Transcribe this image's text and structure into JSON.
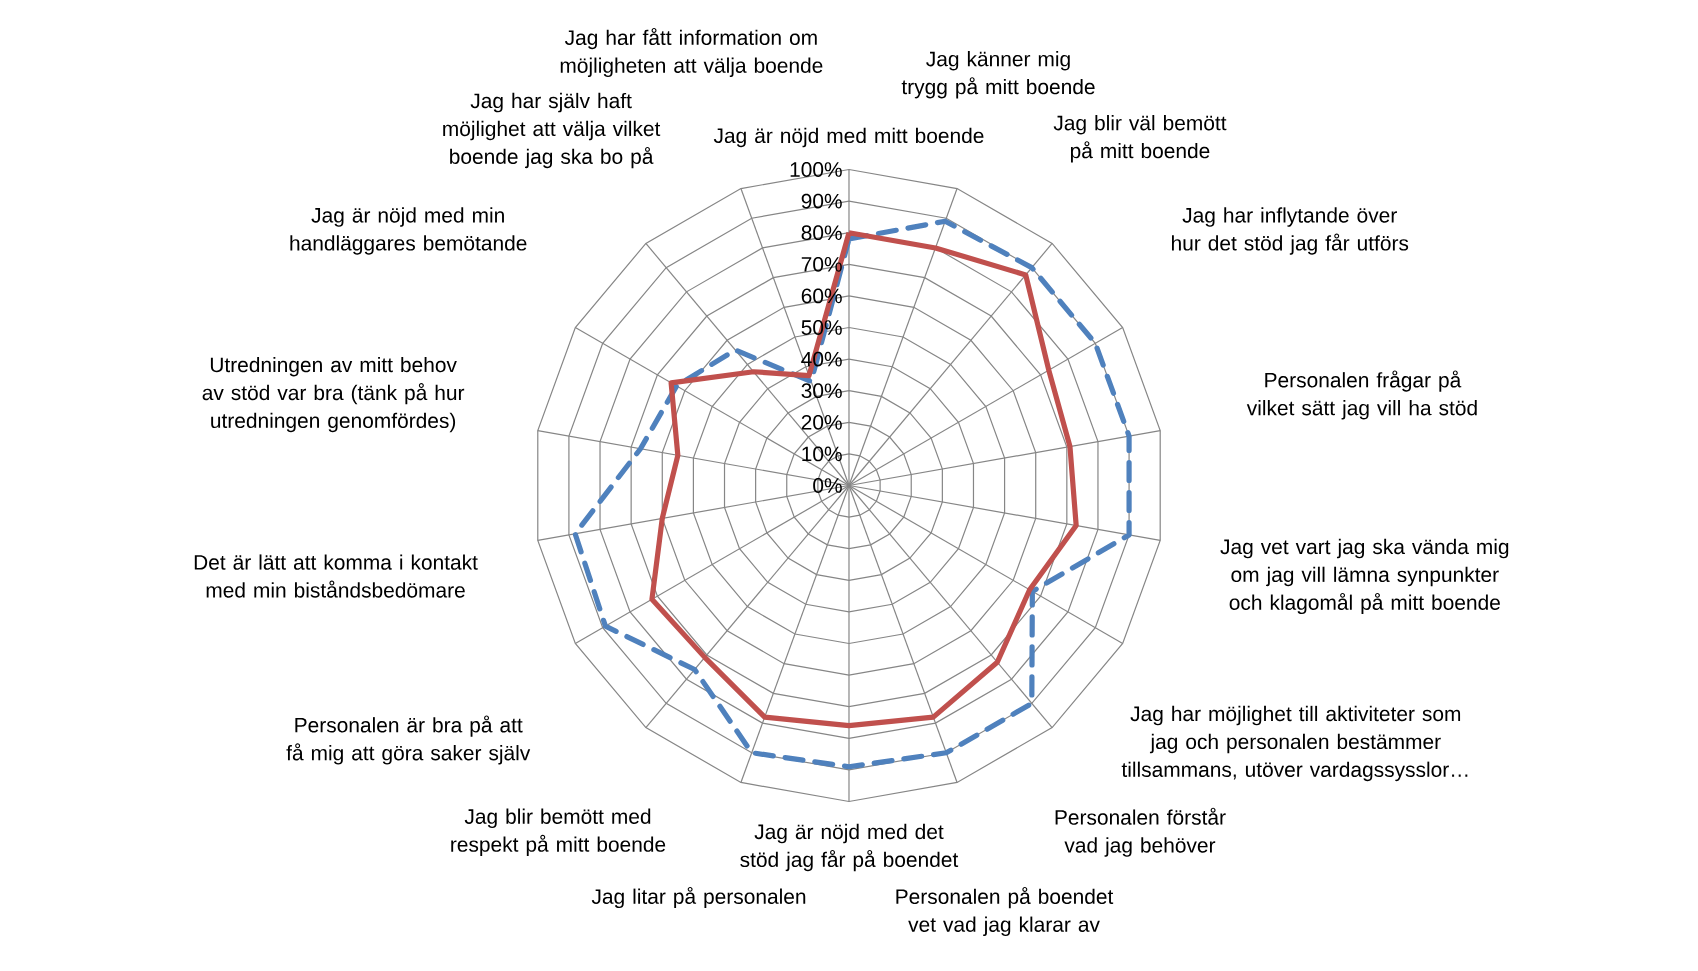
{
  "chart_data": {
    "type": "radar",
    "categories": [
      "Jag är nöjd med mitt boende",
      "Jag känner mig trygg på mitt boende",
      "Jag blir väl bemött på mitt boende",
      "Jag har inflytande över hur det stöd jag får utförs",
      "Personalen frågar på vilket sätt jag vill ha stöd",
      "Jag vet vart jag ska vända mig om jag vill lämna synpunkter och klagomål på mitt boende",
      "Jag har möjlighet till aktiviteter som jag och personalen bestämmer tillsammans, utöver vardagssysslor…",
      "Personalen förstår vad jag behöver",
      "Personalen på boendet vet vad jag klarar av",
      "Jag är nöjd med det stöd jag får på boendet",
      "Jag litar på personalen",
      "Jag blir bemött med respekt på mitt boende",
      "Personalen är bra på att få mig att göra saker själv",
      "Det är lätt att komma i kontakt med min biståndsbedömare",
      "Utredningen av mitt behov av stöd var bra (tänk på hur utredningen genomfördes)",
      "Jag är nöjd med min handläggares bemötande",
      "Jag har själv haft möjlighet att välja vilket boende jag ska bo på",
      "Jag har fått information om möjligheten att välja boende"
    ],
    "series": [
      {
        "color": "#4f81bd",
        "line_style": "dashed",
        "values": [
          78,
          89,
          90,
          90,
          90,
          90,
          67,
          90,
          90,
          89,
          90,
          76,
          89,
          88,
          67,
          63,
          56,
          35
        ]
      },
      {
        "color": "#c0504d",
        "line_style": "solid",
        "values": [
          80,
          80,
          87,
          73,
          71,
          73,
          66,
          73,
          78,
          76,
          78,
          71,
          72,
          60,
          55,
          65,
          47,
          37
        ]
      }
    ],
    "ylim": [
      0,
      100
    ],
    "yticks": [
      {
        "value": 0,
        "label": "0%"
      },
      {
        "value": 10,
        "label": "10%"
      },
      {
        "value": 20,
        "label": "20%"
      },
      {
        "value": 30,
        "label": "30%"
      },
      {
        "value": 40,
        "label": "40%"
      },
      {
        "value": 50,
        "label": "50%"
      },
      {
        "value": 60,
        "label": "60%"
      },
      {
        "value": 70,
        "label": "70%"
      },
      {
        "value": 80,
        "label": "80%"
      },
      {
        "value": 90,
        "label": "90%"
      },
      {
        "value": 100,
        "label": "100%"
      }
    ],
    "grid": true
  }
}
